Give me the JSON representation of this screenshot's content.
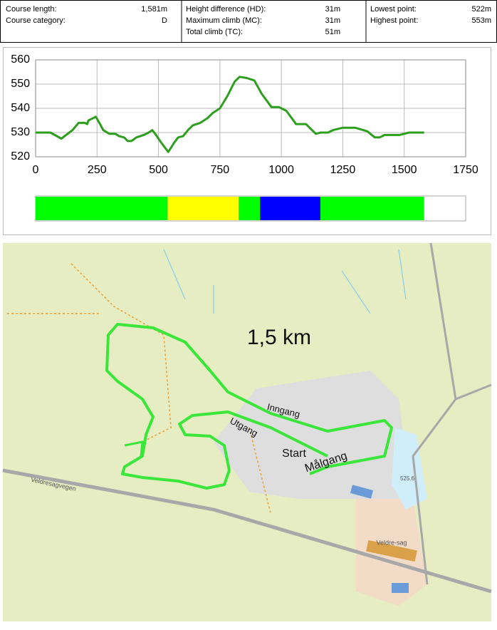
{
  "info": {
    "columns": [
      [
        [
          "Course length:",
          "1,581m"
        ],
        [
          "Course category:",
          "D"
        ]
      ],
      [
        [
          "Height difference (HD):",
          "31m"
        ],
        [
          "Maximum climb (MC):",
          "31m"
        ],
        [
          "Total climb (TC):",
          "51m"
        ]
      ],
      [
        [
          "Lowest point:",
          "522m"
        ],
        [
          "Highest point:",
          "553m"
        ]
      ]
    ]
  },
  "chart_data": {
    "type": "line",
    "x": [
      0,
      60,
      105,
      150,
      175,
      200,
      210,
      215,
      245,
      265,
      275,
      300,
      325,
      340,
      360,
      375,
      390,
      410,
      440,
      460,
      475,
      490,
      510,
      540,
      565,
      580,
      600,
      620,
      640,
      670,
      700,
      720,
      750,
      780,
      810,
      830,
      860,
      890,
      920,
      960,
      990,
      1020,
      1060,
      1100,
      1140,
      1160,
      1190,
      1210,
      1250,
      1300,
      1350,
      1380,
      1400,
      1420,
      1480,
      1520,
      1550,
      1581
    ],
    "values": [
      530,
      530,
      527.5,
      531,
      534,
      534,
      533.5,
      535,
      536.5,
      533,
      531,
      529.5,
      529.5,
      528.5,
      528,
      526.5,
      526.5,
      528,
      529,
      530,
      531,
      529,
      526,
      522,
      526,
      528,
      528.5,
      531,
      533,
      534,
      536,
      538,
      540,
      545,
      551,
      553,
      552.5,
      551.5,
      546,
      540.5,
      540.5,
      539,
      533.5,
      533.5,
      529.5,
      530,
      530,
      531,
      532,
      532,
      530.5,
      528,
      528,
      529,
      529,
      530,
      530,
      530
    ],
    "color": "#2e9e1e",
    "xlim": [
      0,
      1750
    ],
    "xticks": [
      0,
      250,
      500,
      750,
      1000,
      1250,
      1500,
      1750
    ],
    "ylim": [
      520,
      560
    ],
    "yticks": [
      520,
      530,
      540,
      550,
      560
    ],
    "grid": true,
    "segments": [
      {
        "start": 0,
        "end": 536,
        "color": "#00ff00"
      },
      {
        "start": 536,
        "end": 826,
        "color": "#ffff00"
      },
      {
        "start": 826,
        "end": 913,
        "color": "#00ff00"
      },
      {
        "start": 913,
        "end": 1159,
        "color": "#0000ff"
      },
      {
        "start": 1159,
        "end": 1581,
        "color": "#00ff00"
      }
    ]
  },
  "map": {
    "labels": [
      {
        "text": "1,5 km"
      },
      {
        "text": "Inngang"
      },
      {
        "text": "Utgang"
      },
      {
        "text": "Start"
      },
      {
        "text": "Målgang"
      },
      {
        "text": "Veldresagvegen"
      },
      {
        "text": "Veldre-sag"
      },
      {
        "text": "525.6"
      }
    ]
  }
}
